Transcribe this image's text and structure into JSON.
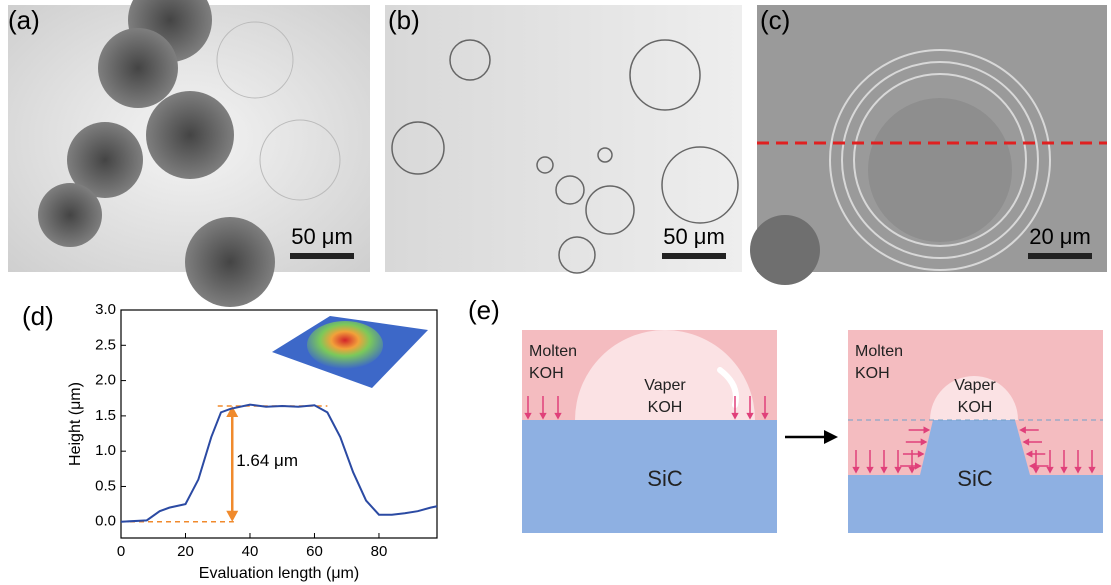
{
  "panels": {
    "a": {
      "label": "(a)",
      "scale_bar": "50 μm"
    },
    "b": {
      "label": "(b)",
      "scale_bar": "50 μm"
    },
    "c": {
      "label": "(c)",
      "scale_bar": "20 μm"
    },
    "d": {
      "label": "(d)"
    },
    "e": {
      "label": "(e)"
    }
  },
  "chart_data": {
    "type": "line",
    "x_label": "Evaluation length (μm)",
    "y_label": "Height (μm)",
    "x": [
      0,
      8,
      12,
      15,
      20,
      24,
      28,
      31,
      34,
      40,
      45,
      50,
      55,
      60,
      64,
      68,
      72,
      76,
      80,
      84,
      88,
      92,
      96,
      98
    ],
    "series": [
      {
        "color": "#2b4aa3",
        "values": [
          0.0,
          0.02,
          0.15,
          0.2,
          0.25,
          0.6,
          1.2,
          1.55,
          1.6,
          1.66,
          1.63,
          1.64,
          1.63,
          1.65,
          1.55,
          1.2,
          0.7,
          0.3,
          0.1,
          0.1,
          0.12,
          0.15,
          0.2,
          0.22
        ]
      }
    ],
    "xlim": [
      0,
      98
    ],
    "ylim": [
      -0.23,
      3.0
    ],
    "xticks": [
      0,
      20,
      40,
      60,
      80
    ],
    "yticks": [
      {
        "value": 0,
        "label": "0.0"
      },
      0.5,
      {
        "value": 1,
        "label": "1.0"
      },
      1.5,
      {
        "value": 2,
        "label": "2.0"
      },
      2.5,
      {
        "value": 3,
        "label": "3.0"
      }
    ],
    "annotation": {
      "text": "1.64 μm",
      "value": 1.64,
      "base": 0,
      "color": "#f08a2c"
    }
  },
  "diagram": {
    "left": {
      "liquid": [
        "Molten",
        "KOH"
      ],
      "vapor": [
        "Vaper",
        "KOH"
      ],
      "substrate": "SiC"
    },
    "right": {
      "liquid": [
        "Molten",
        "KOH"
      ],
      "vapor": [
        "Vaper",
        "KOH"
      ],
      "substrate": "SiC"
    }
  }
}
